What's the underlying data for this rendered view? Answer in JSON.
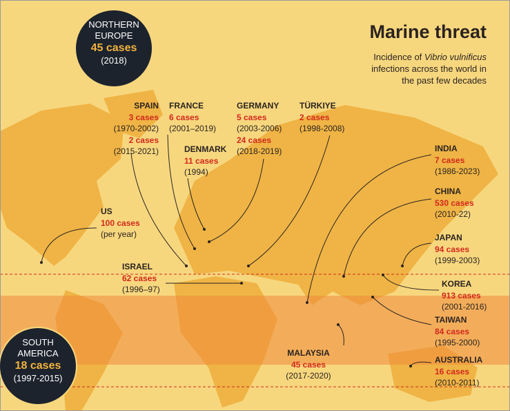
{
  "title": "Marine threat",
  "subtitle": {
    "line1": "Incidence of ",
    "species": "Vibrio vulnificus",
    "line2": "infections across the world in",
    "line3": "the past few decades"
  },
  "circles": [
    {
      "name_lines": [
        "NORTHERN",
        "EUROPE"
      ],
      "cases": "45 cases",
      "period": "(2018)"
    },
    {
      "name_lines": [
        "SOUTH",
        "AMERICA"
      ],
      "cases": "18 cases",
      "period": "(1997-2015)"
    }
  ],
  "locations": [
    {
      "name": "SPAIN",
      "entries": [
        {
          "cases": "3 cases",
          "period": "(1970-2002)"
        },
        {
          "cases": "2 cases",
          "period": "(2015-2021)"
        }
      ]
    },
    {
      "name": "FRANCE",
      "entries": [
        {
          "cases": "6 cases",
          "period": "(2001–2019)"
        }
      ]
    },
    {
      "name": "DENMARK",
      "entries": [
        {
          "cases": "11 cases",
          "period": "(1994)"
        }
      ]
    },
    {
      "name": "GERMANY",
      "entries": [
        {
          "cases": "5 cases",
          "period": "(2003-2006)"
        },
        {
          "cases": "24 cases",
          "period": "(2018-2019)"
        }
      ]
    },
    {
      "name": "TÜRKIYE",
      "entries": [
        {
          "cases": "2 cases",
          "period": "(1998-2008)"
        }
      ]
    },
    {
      "name": "US",
      "entries": [
        {
          "cases": "100 cases",
          "period": "(per year)"
        }
      ]
    },
    {
      "name": "ISRAEL",
      "entries": [
        {
          "cases": "62 cases",
          "period": "(1996–97)"
        }
      ]
    },
    {
      "name": "INDIA",
      "entries": [
        {
          "cases": "7 cases",
          "period": "(1986-2023)"
        }
      ]
    },
    {
      "name": "CHINA",
      "entries": [
        {
          "cases": "530 cases",
          "period": "(2010-22)"
        }
      ]
    },
    {
      "name": "JAPAN",
      "entries": [
        {
          "cases": "94 cases",
          "period": "(1999-2003)"
        }
      ]
    },
    {
      "name": "KOREA",
      "entries": [
        {
          "cases": "913 cases",
          "period": "(2001-2016)"
        }
      ]
    },
    {
      "name": "TAIWAN",
      "entries": [
        {
          "cases": "84 cases",
          "period": "(1995-2000)"
        }
      ]
    },
    {
      "name": "MALAYSIA",
      "entries": [
        {
          "cases": "45 cases",
          "period": "(2017-2020)"
        }
      ]
    },
    {
      "name": "AUSTRALIA",
      "entries": [
        {
          "cases": "16 cases",
          "period": "(2010-2011)"
        }
      ]
    }
  ]
}
